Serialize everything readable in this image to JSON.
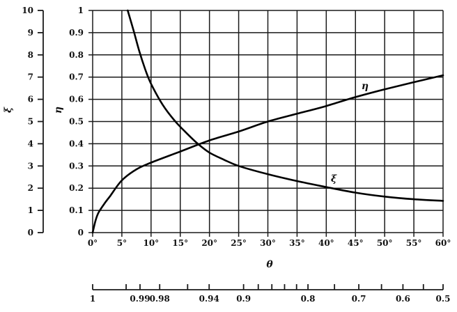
{
  "chart_data": {
    "type": "line",
    "title": "",
    "xlabel": "θ",
    "x_unit": "degrees",
    "xlim_deg": [
      0,
      60
    ],
    "grid": "on",
    "x_ticks": [
      {
        "deg": 0,
        "label": "0°"
      },
      {
        "deg": 5,
        "label": "5°"
      },
      {
        "deg": 10,
        "label": "10°"
      },
      {
        "deg": 15,
        "label": "15°"
      },
      {
        "deg": 20,
        "label": "20°"
      },
      {
        "deg": 25,
        "label": "25°"
      },
      {
        "deg": 30,
        "label": "30°"
      },
      {
        "deg": 35,
        "label": "35°"
      },
      {
        "deg": 40,
        "label": "40°"
      },
      {
        "deg": 45,
        "label": "45°"
      },
      {
        "deg": 50,
        "label": "50°"
      },
      {
        "deg": 55,
        "label": "55°"
      },
      {
        "deg": 60,
        "label": "60°"
      }
    ],
    "left_axis": {
      "label": "ξ",
      "range": [
        0,
        10
      ],
      "ticks": [
        {
          "value": 0,
          "label": "0"
        },
        {
          "value": 1,
          "label": "1"
        },
        {
          "value": 2,
          "label": "2"
        },
        {
          "value": 3,
          "label": "3"
        },
        {
          "value": 4,
          "label": "4"
        },
        {
          "value": 5,
          "label": "5"
        },
        {
          "value": 6,
          "label": "6"
        },
        {
          "value": 7,
          "label": "7"
        },
        {
          "value": 8,
          "label": "8"
        },
        {
          "value": 9,
          "label": "9"
        },
        {
          "value": 10,
          "label": "10"
        }
      ]
    },
    "inner_axis": {
      "label": "η",
      "range": [
        0,
        1
      ],
      "ticks": [
        {
          "value": 0,
          "label": "0"
        },
        {
          "value": 0.1,
          "label": "0.1"
        },
        {
          "value": 0.2,
          "label": "0.2"
        },
        {
          "value": 0.3,
          "label": "0.3"
        },
        {
          "value": 0.4,
          "label": "0.4"
        },
        {
          "value": 0.5,
          "label": "0.5"
        },
        {
          "value": 0.6,
          "label": "0.6"
        },
        {
          "value": 0.7,
          "label": "0.7"
        },
        {
          "value": 0.8,
          "label": "0.8"
        },
        {
          "value": 0.9,
          "label": "0.9"
        },
        {
          "value": 1,
          "label": "1"
        }
      ]
    },
    "series": [
      {
        "name": "η",
        "y_axis": "η",
        "x_deg": [
          0,
          0.5,
          1,
          2,
          3,
          5,
          7.5,
          10,
          15,
          20,
          25,
          30,
          35,
          40,
          45,
          50,
          55,
          60
        ],
        "y": [
          0,
          0.055,
          0.09,
          0.13,
          0.165,
          0.235,
          0.285,
          0.315,
          0.365,
          0.415,
          0.455,
          0.5,
          0.535,
          0.57,
          0.61,
          0.645,
          0.677,
          0.708
        ]
      },
      {
        "name": "ξ",
        "y_axis": "ξ",
        "x_deg": [
          6,
          7,
          8,
          9,
          10,
          12,
          14,
          16,
          18,
          20,
          22.5,
          25,
          30,
          35,
          40,
          45,
          50,
          55,
          60
        ],
        "y": [
          10,
          9.1,
          8.15,
          7.35,
          6.7,
          5.75,
          5.05,
          4.5,
          4.0,
          3.6,
          3.28,
          3.0,
          2.63,
          2.32,
          2.05,
          1.8,
          1.62,
          1.5,
          1.43
        ]
      }
    ],
    "secondary_scale": {
      "description": "cos θ values aligned with θ axis",
      "ticks": [
        {
          "value": 1,
          "label": "1"
        },
        {
          "value": 0.995,
          "label": ""
        },
        {
          "value": 0.99,
          "label": "0.99"
        },
        {
          "value": 0.98,
          "label": "0.98"
        },
        {
          "value": 0.96,
          "label": ""
        },
        {
          "value": 0.94,
          "label": "0.94"
        },
        {
          "value": 0.9,
          "label": "0.9"
        },
        {
          "value": 0.88,
          "label": ""
        },
        {
          "value": 0.86,
          "label": ""
        },
        {
          "value": 0.84,
          "label": ""
        },
        {
          "value": 0.82,
          "label": ""
        },
        {
          "value": 0.8,
          "label": "0.8"
        },
        {
          "value": 0.75,
          "label": ""
        },
        {
          "value": 0.7,
          "label": "0.7"
        },
        {
          "value": 0.65,
          "label": ""
        },
        {
          "value": 0.6,
          "label": "0.6"
        },
        {
          "value": 0.55,
          "label": ""
        },
        {
          "value": 0.5,
          "label": "0.5"
        }
      ]
    },
    "annotations": [
      {
        "text": "η",
        "near": "rising curve"
      },
      {
        "text": "ξ",
        "near": "falling curve"
      }
    ],
    "colors": {
      "line": "#000000",
      "grid": "#1a1a1a",
      "background": "#ffffff"
    }
  }
}
